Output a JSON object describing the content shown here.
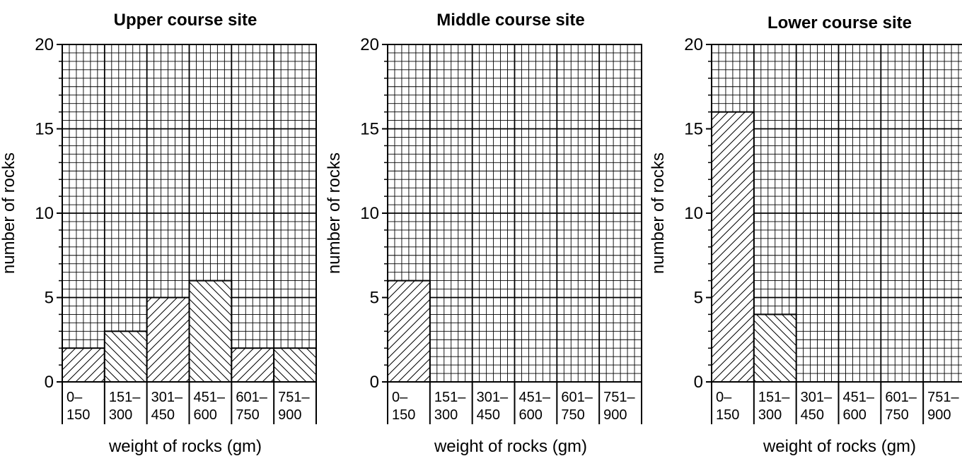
{
  "chart_data": [
    {
      "type": "bar",
      "title": "Upper course site",
      "xlabel": "weight of rocks (gm)",
      "ylabel": "number of rocks",
      "categories": [
        [
          "0–",
          "150"
        ],
        [
          "151–",
          "300"
        ],
        [
          "301–",
          "450"
        ],
        [
          "451–",
          "600"
        ],
        [
          "601–",
          "750"
        ],
        [
          "751–",
          "900"
        ]
      ],
      "values": [
        2,
        3,
        5,
        6,
        2,
        2
      ],
      "ylim": [
        0,
        20
      ],
      "yticks": [
        0,
        5,
        10,
        15,
        20
      ],
      "grid": true
    },
    {
      "type": "bar",
      "title": "Middle course site",
      "xlabel": "weight of rocks (gm)",
      "ylabel": "number of rocks",
      "categories": [
        [
          "0–",
          "150"
        ],
        [
          "151–",
          "300"
        ],
        [
          "301–",
          "450"
        ],
        [
          "451–",
          "600"
        ],
        [
          "601–",
          "750"
        ],
        [
          "751–",
          "900"
        ]
      ],
      "values": [
        6,
        0,
        0,
        0,
        0,
        0
      ],
      "ylim": [
        0,
        20
      ],
      "yticks": [
        0,
        5,
        10,
        15,
        20
      ],
      "grid": true
    },
    {
      "type": "bar",
      "title": "Lower course site",
      "xlabel": "weight of rocks (gm)",
      "ylabel": "number of rocks",
      "categories": [
        [
          "0–",
          "150"
        ],
        [
          "151–",
          "300"
        ],
        [
          "301–",
          "450"
        ],
        [
          "451–",
          "600"
        ],
        [
          "601–",
          "750"
        ],
        [
          "751–",
          "900"
        ]
      ],
      "values": [
        16,
        4,
        0,
        0,
        0,
        0
      ],
      "ylim": [
        0,
        20
      ],
      "yticks": [
        0,
        5,
        10,
        15,
        20
      ],
      "grid": true
    }
  ]
}
